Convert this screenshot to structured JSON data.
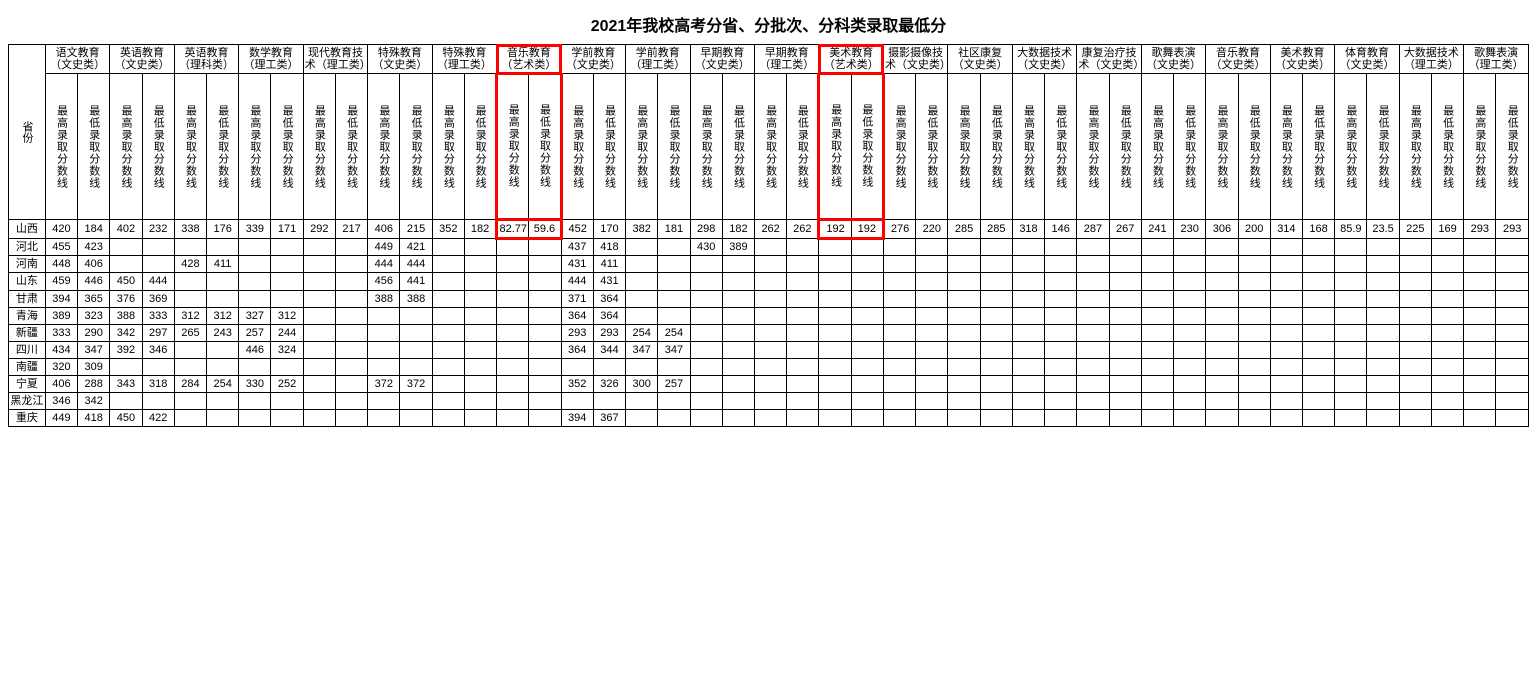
{
  "title": "2021年我校高考分省、分批次、分科类录取最低分",
  "province_header": "省份",
  "sub_headers": {
    "max": "最高录取分数线",
    "min": "最低录取分数线"
  },
  "majors": [
    "语文教育（文史类）",
    "英语教育（文史类）",
    "英语教育（理科类）",
    "数学教育（理工类）",
    "现代教育技术（理工类）",
    "特殊教育（文史类）",
    "特殊教育（理工类）",
    "音乐教育（艺术类）",
    "学前教育（文史类）",
    "学前教育（理工类）",
    "早期教育（文史类）",
    "早期教育（理工类）",
    "美术教育（艺术类）",
    "摄影摄像技术（文史类）",
    "社区康复（文史类）",
    "大数据技术（文史类）",
    "康复治疗技术（文史类）",
    "歌舞表演（文史类）",
    "音乐教育（文史类）",
    "美术教育（文史类）",
    "体育教育（文史类）",
    "大数据技术（理工类）",
    "歌舞表演（理工类）"
  ],
  "highlight_indices": [
    7,
    12
  ],
  "provinces": [
    "山西",
    "河北",
    "河南",
    "山东",
    "甘肃",
    "青海",
    "新疆",
    "四川",
    "南疆",
    "宁夏",
    "黑龙江",
    "重庆"
  ],
  "rows": {
    "山西": [
      "420",
      "184",
      "402",
      "232",
      "338",
      "176",
      "339",
      "171",
      "292",
      "217",
      "406",
      "215",
      "352",
      "182",
      "82.77",
      "59.6",
      "452",
      "170",
      "382",
      "181",
      "298",
      "182",
      "262",
      "262",
      "192",
      "192",
      "276",
      "220",
      "285",
      "285",
      "318",
      "146",
      "287",
      "267",
      "241",
      "230",
      "306",
      "200",
      "314",
      "168",
      "85.9",
      "23.5",
      "225",
      "169",
      "293",
      "293"
    ],
    "河北": [
      "455",
      "423",
      "",
      "",
      "",
      "",
      "",
      "",
      "",
      "",
      "449",
      "421",
      "",
      "",
      "",
      "",
      "437",
      "418",
      "",
      "",
      "430",
      "389",
      "",
      "",
      "",
      "",
      "",
      "",
      "",
      "",
      "",
      "",
      "",
      "",
      "",
      "",
      "",
      "",
      "",
      "",
      "",
      "",
      "",
      "",
      "",
      ""
    ],
    "河南": [
      "448",
      "406",
      "",
      "",
      "428",
      "411",
      "",
      "",
      "",
      "",
      "444",
      "444",
      "",
      "",
      "",
      "",
      "431",
      "411",
      "",
      "",
      "",
      "",
      "",
      "",
      "",
      "",
      "",
      "",
      "",
      "",
      "",
      "",
      "",
      "",
      "",
      "",
      "",
      "",
      "",
      "",
      "",
      "",
      "",
      "",
      "",
      ""
    ],
    "山东": [
      "459",
      "446",
      "450",
      "444",
      "",
      "",
      "",
      "",
      "",
      "",
      "456",
      "441",
      "",
      "",
      "",
      "",
      "444",
      "431",
      "",
      "",
      "",
      "",
      "",
      "",
      "",
      "",
      "",
      "",
      "",
      "",
      "",
      "",
      "",
      "",
      "",
      "",
      "",
      "",
      "",
      "",
      "",
      "",
      "",
      "",
      "",
      ""
    ],
    "甘肃": [
      "394",
      "365",
      "376",
      "369",
      "",
      "",
      "",
      "",
      "",
      "",
      "388",
      "388",
      "",
      "",
      "",
      "",
      "371",
      "364",
      "",
      "",
      "",
      "",
      "",
      "",
      "",
      "",
      "",
      "",
      "",
      "",
      "",
      "",
      "",
      "",
      "",
      "",
      "",
      "",
      "",
      "",
      "",
      "",
      "",
      "",
      "",
      ""
    ],
    "青海": [
      "389",
      "323",
      "388",
      "333",
      "312",
      "312",
      "327",
      "312",
      "",
      "",
      "",
      "",
      "",
      "",
      "",
      "",
      "364",
      "364",
      "",
      "",
      "",
      "",
      "",
      "",
      "",
      "",
      "",
      "",
      "",
      "",
      "",
      "",
      "",
      "",
      "",
      "",
      "",
      "",
      "",
      "",
      "",
      "",
      "",
      "",
      "",
      ""
    ],
    "新疆": [
      "333",
      "290",
      "342",
      "297",
      "265",
      "243",
      "257",
      "244",
      "",
      "",
      "",
      "",
      "",
      "",
      "",
      "",
      "293",
      "293",
      "254",
      "254",
      "",
      "",
      "",
      "",
      "",
      "",
      "",
      "",
      "",
      "",
      "",
      "",
      "",
      "",
      "",
      "",
      "",
      "",
      "",
      "",
      "",
      "",
      "",
      "",
      "",
      ""
    ],
    "四川": [
      "434",
      "347",
      "392",
      "346",
      "",
      "",
      "446",
      "324",
      "",
      "",
      "",
      "",
      "",
      "",
      "",
      "",
      "364",
      "344",
      "347",
      "347",
      "",
      "",
      "",
      "",
      "",
      "",
      "",
      "",
      "",
      "",
      "",
      "",
      "",
      "",
      "",
      "",
      "",
      "",
      "",
      "",
      "",
      "",
      "",
      "",
      "",
      ""
    ],
    "南疆": [
      "320",
      "309",
      "",
      "",
      "",
      "",
      "",
      "",
      "",
      "",
      "",
      "",
      "",
      "",
      "",
      "",
      "",
      "",
      "",
      "",
      "",
      "",
      "",
      "",
      "",
      "",
      "",
      "",
      "",
      "",
      "",
      "",
      "",
      "",
      "",
      "",
      "",
      "",
      "",
      "",
      "",
      "",
      "",
      "",
      "",
      ""
    ],
    "宁夏": [
      "406",
      "288",
      "343",
      "318",
      "284",
      "254",
      "330",
      "252",
      "",
      "",
      "372",
      "372",
      "",
      "",
      "",
      "",
      "352",
      "326",
      "300",
      "257",
      "",
      "",
      "",
      "",
      "",
      "",
      "",
      "",
      "",
      "",
      "",
      "",
      "",
      "",
      "",
      "",
      "",
      "",
      "",
      "",
      "",
      "",
      "",
      "",
      "",
      ""
    ],
    "黑龙江": [
      "346",
      "342",
      "",
      "",
      "",
      "",
      "",
      "",
      "",
      "",
      "",
      "",
      "",
      "",
      "",
      "",
      "",
      "",
      "",
      "",
      "",
      "",
      "",
      "",
      "",
      "",
      "",
      "",
      "",
      "",
      "",
      "",
      "",
      "",
      "",
      "",
      "",
      "",
      "",
      "",
      "",
      "",
      "",
      "",
      "",
      ""
    ],
    "重庆": [
      "449",
      "418",
      "450",
      "422",
      "",
      "",
      "",
      "",
      "",
      "",
      "",
      "",
      "",
      "",
      "",
      "",
      "394",
      "367",
      "",
      "",
      "",
      "",
      "",
      "",
      "",
      "",
      "",
      "",
      "",
      "",
      "",
      "",
      "",
      "",
      "",
      "",
      "",
      "",
      "",
      "",
      "",
      "",
      "",
      "",
      "",
      ""
    ]
  },
  "styling": {
    "border_color": "#000000",
    "highlight_border_color": "#ff0000",
    "background_color": "#ffffff",
    "title_fontsize": 16,
    "cell_fontsize": 11
  }
}
